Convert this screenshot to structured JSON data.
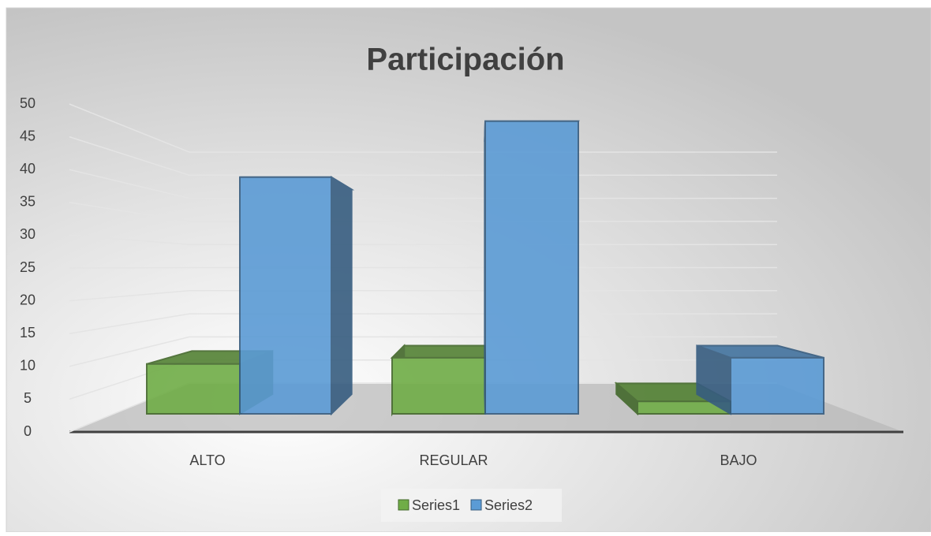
{
  "chart_data": {
    "type": "bar3d",
    "title": "Participación",
    "categories": [
      "ALTO",
      "REGULAR",
      "BAJO"
    ],
    "series": [
      {
        "name": "Series1",
        "color": "#70ad47",
        "values": [
          8,
          9,
          2
        ]
      },
      {
        "name": "Series2",
        "color": "#5b9bd5",
        "values": [
          38,
          47,
          9
        ]
      }
    ],
    "ylim": [
      0,
      50
    ],
    "yticks": [
      0,
      5,
      10,
      15,
      20,
      25,
      30,
      35,
      40,
      45,
      50
    ],
    "grid": true,
    "legend": "bottom"
  }
}
